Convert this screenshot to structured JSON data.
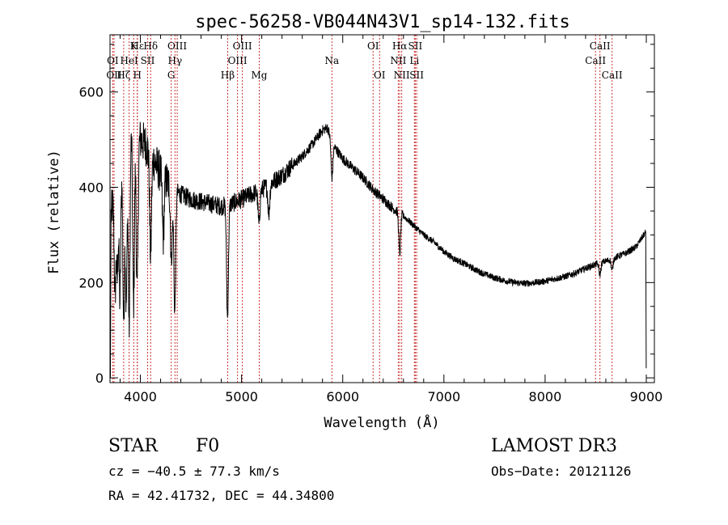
{
  "chart_data": {
    "type": "line",
    "title": "spec-56258-VB044N43V1_sp14-132.fits",
    "xlabel": "Wavelength (Å)",
    "ylabel": "Flux (relative)",
    "xlim": [
      3700,
      9080
    ],
    "ylim": [
      -10,
      720
    ],
    "xticks": [
      4000,
      5000,
      6000,
      7000,
      8000,
      9000
    ],
    "yticks": [
      0,
      200,
      400,
      600
    ],
    "x_minor_step": 200,
    "y_minor_step": 50,
    "grid": false,
    "line_color": "#000000",
    "marker_color": "#cc3333",
    "continuum": [
      [
        3710,
        340
      ],
      [
        3760,
        420
      ],
      [
        3800,
        470
      ],
      [
        3850,
        510
      ],
      [
        3900,
        540
      ],
      [
        3950,
        520
      ],
      [
        4000,
        500
      ],
      [
        4050,
        490
      ],
      [
        4100,
        470
      ],
      [
        4150,
        450
      ],
      [
        4200,
        430
      ],
      [
        4250,
        415
      ],
      [
        4300,
        400
      ],
      [
        4400,
        385
      ],
      [
        4500,
        375
      ],
      [
        4600,
        370
      ],
      [
        4700,
        365
      ],
      [
        4800,
        360
      ],
      [
        4900,
        365
      ],
      [
        5000,
        375
      ],
      [
        5100,
        385
      ],
      [
        5200,
        395
      ],
      [
        5300,
        410
      ],
      [
        5400,
        425
      ],
      [
        5500,
        445
      ],
      [
        5600,
        465
      ],
      [
        5700,
        490
      ],
      [
        5800,
        520
      ],
      [
        5850,
        525
      ],
      [
        5900,
        490
      ],
      [
        6000,
        460
      ],
      [
        6100,
        440
      ],
      [
        6200,
        420
      ],
      [
        6300,
        395
      ],
      [
        6400,
        375
      ],
      [
        6500,
        355
      ],
      [
        6600,
        340
      ],
      [
        6700,
        320
      ],
      [
        6800,
        300
      ],
      [
        6900,
        285
      ],
      [
        7000,
        265
      ],
      [
        7100,
        250
      ],
      [
        7200,
        240
      ],
      [
        7300,
        228
      ],
      [
        7400,
        218
      ],
      [
        7500,
        210
      ],
      [
        7600,
        204
      ],
      [
        7700,
        200
      ],
      [
        7800,
        198
      ],
      [
        7900,
        200
      ],
      [
        8000,
        203
      ],
      [
        8100,
        208
      ],
      [
        8200,
        213
      ],
      [
        8300,
        220
      ],
      [
        8400,
        230
      ],
      [
        8500,
        238
      ],
      [
        8600,
        245
      ],
      [
        8700,
        253
      ],
      [
        8800,
        262
      ],
      [
        8900,
        275
      ],
      [
        8960,
        295
      ],
      [
        8990,
        305
      ]
    ],
    "absorption": [
      [
        3750,
        0.45
      ],
      [
        3772,
        0.5
      ],
      [
        3798,
        0.35
      ],
      [
        3835,
        0.25
      ],
      [
        3860,
        0.3
      ],
      [
        3889,
        0.2
      ],
      [
        3933,
        0.3
      ],
      [
        3968,
        0.35
      ],
      [
        4101,
        0.55
      ],
      [
        4226,
        0.7
      ],
      [
        4307,
        0.62
      ],
      [
        4340,
        0.35
      ],
      [
        4861,
        0.35
      ],
      [
        5172,
        0.82
      ],
      [
        5270,
        0.85
      ],
      [
        5893,
        0.85
      ],
      [
        6563,
        0.75
      ],
      [
        8542,
        0.9
      ],
      [
        8662,
        0.9
      ]
    ],
    "lines": [
      {
        "label": "Hε",
        "wave": 3970,
        "row": 1
      },
      {
        "label": "Hδ",
        "wave": 4102,
        "row": 1
      },
      {
        "label": "K",
        "wave": 3934,
        "row": 1
      },
      {
        "label": "OIII",
        "wave": 4364,
        "row": 1
      },
      {
        "label": "OIII",
        "wave": 5008,
        "row": 1
      },
      {
        "label": "OI",
        "wave": 6300,
        "row": 1
      },
      {
        "label": "Hα",
        "wave": 6563,
        "row": 1
      },
      {
        "label": "SII",
        "wave": 6717,
        "row": 1
      },
      {
        "label": "CaII",
        "wave": 8542,
        "row": 1
      },
      {
        "label": "OI",
        "wave": 3727,
        "row": 2
      },
      {
        "label": "HeI",
        "wave": 3889,
        "row": 2
      },
      {
        "label": "SII",
        "wave": 4072,
        "row": 2
      },
      {
        "label": "Hγ",
        "wave": 4342,
        "row": 2
      },
      {
        "label": "OIII",
        "wave": 4960,
        "row": 2
      },
      {
        "label": "Na",
        "wave": 5893,
        "row": 2
      },
      {
        "label": "NII",
        "wave": 6549,
        "row": 2
      },
      {
        "label": "Li",
        "wave": 6708,
        "row": 2
      },
      {
        "label": "CaII",
        "wave": 8498,
        "row": 2
      },
      {
        "label": "OII",
        "wave": 3740,
        "row": 3
      },
      {
        "label": "Hζ",
        "wave": 3835,
        "row": 3
      },
      {
        "label": "H",
        "wave": 3970,
        "row": 3
      },
      {
        "label": "G",
        "wave": 4305,
        "row": 3
      },
      {
        "label": "Hβ",
        "wave": 4863,
        "row": 3
      },
      {
        "label": "Mg",
        "wave": 5175,
        "row": 3
      },
      {
        "label": "OI",
        "wave": 6364,
        "row": 3
      },
      {
        "label": "NII",
        "wave": 6583,
        "row": 3
      },
      {
        "label": "SII",
        "wave": 6731,
        "row": 3
      },
      {
        "label": "CaII",
        "wave": 8662,
        "row": 3
      }
    ]
  },
  "info": {
    "class": "STAR",
    "subclass": "F0",
    "survey": "LAMOST DR3",
    "cz": "cz = −40.5 ± 77.3 km/s",
    "obs_date": "Obs−Date: 20121126",
    "coords": "RA =  42.41732, DEC =  44.34800"
  }
}
